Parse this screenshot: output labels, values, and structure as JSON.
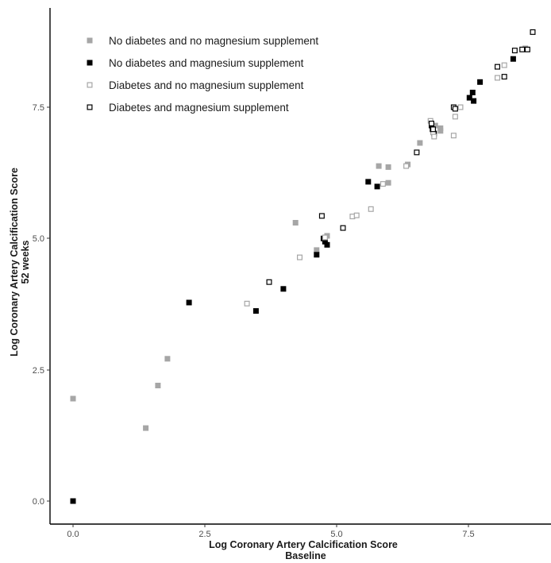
{
  "chart_data": {
    "type": "scatter",
    "title": "",
    "xlabel": [
      "Log Coronary Artery Calcification Score",
      "Baseline"
    ],
    "ylabel": [
      "Log Coronary Artery Calcification Score",
      "52 weeks"
    ],
    "xlim": [
      -0.45,
      8.9
    ],
    "ylim": [
      -0.45,
      9.3
    ],
    "x_ticks": [
      0.0,
      2.5,
      5.0,
      7.5
    ],
    "x_tick_labels": [
      "0.0",
      "2.5",
      "5.0",
      "7.5"
    ],
    "y_ticks": [
      0.0,
      2.5,
      5.0,
      7.5
    ],
    "y_tick_labels": [
      "0.0",
      "2.5",
      "5.0",
      "7.5"
    ],
    "grid": false,
    "legend_position": "top-left",
    "series": [
      {
        "name": "No diabetes and no magnesium supplement",
        "marker": "filled-square",
        "color": "#a6a6a6",
        "points": [
          [
            0.0,
            1.95
          ],
          [
            1.38,
            1.39
          ],
          [
            1.61,
            2.2
          ],
          [
            1.79,
            2.71
          ],
          [
            4.22,
            5.3
          ],
          [
            4.62,
            4.78
          ],
          [
            4.82,
            5.05
          ],
          [
            5.8,
            6.38
          ],
          [
            5.98,
            6.36
          ],
          [
            5.98,
            6.06
          ],
          [
            6.35,
            6.41
          ],
          [
            6.58,
            6.82
          ],
          [
            6.87,
            7.15
          ],
          [
            6.97,
            7.1
          ],
          [
            6.97,
            7.05
          ],
          [
            8.58,
            8.62
          ]
        ]
      },
      {
        "name": "No diabetes and magnesium supplement",
        "marker": "filled-square",
        "color": "#000000",
        "points": [
          [
            0.0,
            0.0
          ],
          [
            2.2,
            3.78
          ],
          [
            3.47,
            3.62
          ],
          [
            3.99,
            4.04
          ],
          [
            4.62,
            4.69
          ],
          [
            4.75,
            5.0
          ],
          [
            4.78,
            4.94
          ],
          [
            4.82,
            4.88
          ],
          [
            5.6,
            6.08
          ],
          [
            5.77,
            5.99
          ],
          [
            6.8,
            7.15
          ],
          [
            6.82,
            7.08
          ],
          [
            6.85,
            7.0
          ],
          [
            7.52,
            7.68
          ],
          [
            7.58,
            7.78
          ],
          [
            7.6,
            7.62
          ],
          [
            7.72,
            7.98
          ],
          [
            8.35,
            8.42
          ]
        ]
      },
      {
        "name": "Diabetes and no magnesium supplement",
        "marker": "open-square",
        "color": "#a6a6a6",
        "points": [
          [
            3.3,
            3.76
          ],
          [
            4.3,
            4.64
          ],
          [
            4.78,
            5.02
          ],
          [
            5.3,
            5.42
          ],
          [
            5.38,
            5.44
          ],
          [
            5.65,
            5.56
          ],
          [
            5.88,
            6.04
          ],
          [
            6.32,
            6.38
          ],
          [
            6.78,
            7.24
          ],
          [
            6.83,
            7.02
          ],
          [
            6.85,
            6.94
          ],
          [
            7.22,
            6.96
          ],
          [
            7.25,
            7.32
          ],
          [
            7.35,
            7.5
          ],
          [
            8.05,
            8.06
          ],
          [
            8.18,
            8.3
          ]
        ]
      },
      {
        "name": "Diabetes and magnesium supplement",
        "marker": "open-square",
        "color": "#000000",
        "points": [
          [
            3.72,
            4.17
          ],
          [
            4.72,
            5.43
          ],
          [
            5.12,
            5.2
          ],
          [
            6.52,
            6.64
          ],
          [
            6.8,
            7.19
          ],
          [
            6.83,
            7.08
          ],
          [
            7.22,
            7.5
          ],
          [
            7.25,
            7.47
          ],
          [
            8.05,
            8.27
          ],
          [
            8.18,
            8.08
          ],
          [
            8.38,
            8.58
          ],
          [
            8.52,
            8.6
          ],
          [
            8.62,
            8.6
          ],
          [
            8.72,
            8.93
          ]
        ]
      }
    ]
  }
}
